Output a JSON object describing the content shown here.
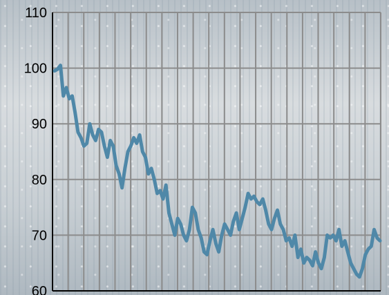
{
  "chart_data": {
    "type": "line",
    "title": "",
    "xlabel": "",
    "ylabel": "",
    "ylim": [
      60,
      110
    ],
    "yticks": [
      "60",
      "70",
      "80",
      "90",
      "100",
      "110"
    ],
    "grid": true,
    "legend": "none",
    "vertical_gridline_count": 21,
    "colors": {
      "line": "#4f88a8",
      "grid": "#8c8c8c",
      "axis": "#000000"
    },
    "series": [
      {
        "values": [
          99.5,
          99.8,
          100.5,
          95.0,
          96.5,
          94.5,
          95.0,
          92.0,
          88.5,
          87.5,
          86.0,
          86.5,
          90.0,
          88.0,
          87.0,
          89.0,
          88.5,
          86.0,
          84.0,
          87.0,
          86.0,
          82.5,
          81.0,
          78.5,
          82.0,
          85.0,
          86.0,
          87.5,
          86.5,
          88.0,
          85.0,
          84.0,
          81.0,
          82.0,
          80.0,
          77.5,
          78.0,
          76.5,
          79.0,
          74.0,
          72.0,
          70.0,
          73.0,
          72.0,
          70.0,
          69.0,
          71.0,
          75.0,
          74.0,
          71.0,
          69.5,
          67.0,
          66.5,
          69.0,
          71.0,
          68.5,
          67.0,
          70.0,
          72.0,
          71.0,
          70.0,
          72.5,
          74.0,
          71.0,
          73.0,
          75.0,
          77.5,
          76.5,
          77.0,
          76.0,
          75.5,
          76.5,
          74.5,
          72.0,
          71.0,
          73.0,
          74.5,
          72.0,
          71.0,
          69.0,
          69.5,
          68.0,
          70.0,
          66.0,
          67.5,
          65.0,
          66.0,
          65.5,
          64.5,
          67.0,
          65.0,
          64.0,
          66.0,
          70.0,
          69.5,
          70.0,
          69.0,
          71.0,
          68.0,
          69.0,
          67.0,
          65.0,
          64.0,
          63.0,
          62.5,
          64.0,
          66.5,
          67.5,
          68.0,
          71.0,
          69.5,
          69.0
        ]
      }
    ]
  }
}
